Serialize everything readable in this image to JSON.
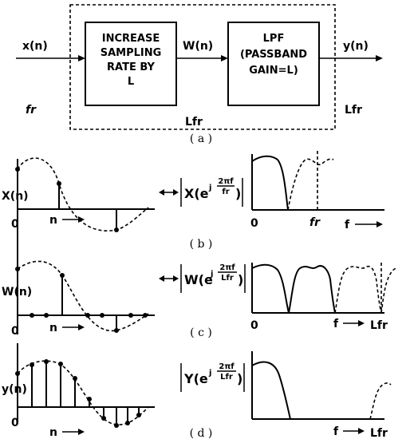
{
  "block_diagram": {
    "input": "x(n)",
    "middle_signal": "W(n)",
    "output": "y(n)",
    "box1_lines": [
      "INCREASE",
      "SAMPLING",
      "RATE BY",
      "L"
    ],
    "box2_lines": [
      "LPF",
      "(PASSBAND",
      "GAIN=L)"
    ],
    "rate_in": "fr",
    "rate_mid": "Lfr",
    "rate_out": "Lfr",
    "caption": "( a )"
  },
  "panels": [
    {
      "id": "b",
      "time_ylabel": "X(n)",
      "freq_label_main": "X(e",
      "freq_exp_num": "2πf",
      "freq_exp_den": "fr",
      "origin_time": "0",
      "origin_freq": "0",
      "n_label": "n",
      "f_label": "f",
      "freq_mark": "fr",
      "caption": "( b )"
    },
    {
      "id": "c",
      "time_ylabel": "W(n)",
      "freq_label_main": "W(e",
      "freq_exp_num": "2πf",
      "freq_exp_den": "Lfr",
      "origin_time": "0",
      "origin_freq": "0",
      "n_label": "n",
      "f_label": "f",
      "freq_mark": "Lfr",
      "caption": "( c )"
    },
    {
      "id": "d",
      "time_ylabel": "y(n)",
      "freq_label_main": "Y(e",
      "freq_exp_num": "2πf",
      "freq_exp_den": "Lfr",
      "origin_time": "0",
      "origin_freq": "",
      "n_label": "n",
      "f_label": "f",
      "freq_mark": "Lfr",
      "caption": "( d )"
    }
  ],
  "exp_j": "j"
}
